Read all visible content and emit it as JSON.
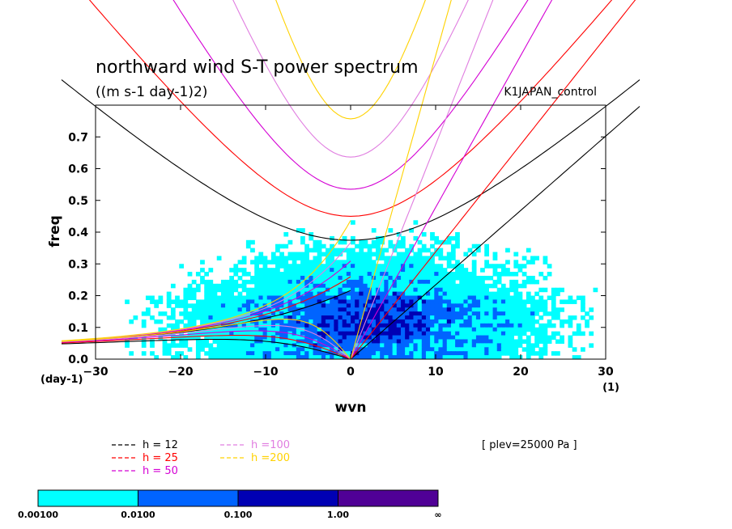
{
  "chart_data": {
    "type": "heatmap",
    "title": "northward wind S-T power spectrum",
    "subtitle": "((m s-1 day-1)2)",
    "experiment": "K1JAPAN_control",
    "xlabel": "wvn",
    "ylabel": "freq",
    "x_unit": "(1)",
    "y_unit": "(day-1)",
    "xlim": [
      -30,
      30
    ],
    "ylim": [
      0,
      0.8
    ],
    "xticks": [
      "−30",
      "−20",
      "−10",
      "0",
      "10",
      "20",
      "30"
    ],
    "yticks": [
      "0.0",
      "0.1",
      "0.2",
      "0.3",
      "0.4",
      "0.5",
      "0.6",
      "0.7"
    ],
    "plev_label": "[ plev=25000 Pa ]",
    "colorbar": {
      "colors": [
        "#00ffff",
        "#0064ff",
        "#0000b4",
        "#500096"
      ],
      "labels": [
        "0.00100",
        "0.0100",
        "0.100",
        "1.00",
        "∞"
      ]
    },
    "dispersion_curves": [
      {
        "name": "h = 12",
        "h": 12,
        "color": "#000000"
      },
      {
        "name": "h = 25",
        "h": 25,
        "color": "#ff0000"
      },
      {
        "name": "h = 50",
        "h": 50,
        "color": "#d400d4"
      },
      {
        "name": "h =100",
        "h": 100,
        "color": "#e07de0"
      },
      {
        "name": "h =200",
        "h": 200,
        "color": "#ffd200"
      }
    ]
  }
}
